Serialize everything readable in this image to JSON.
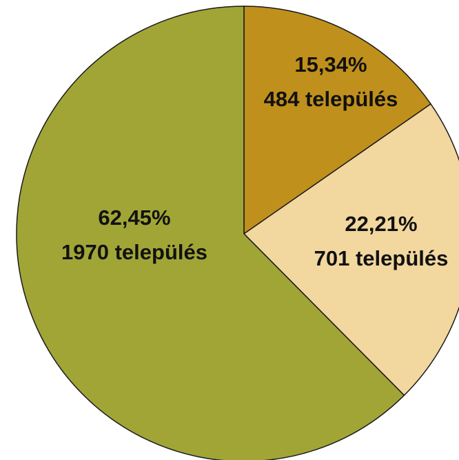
{
  "chart_data": {
    "type": "pie",
    "title": "",
    "start_angle_deg": 0,
    "direction": "clockwise",
    "legend": "none",
    "slices": [
      {
        "percent_label": "15,34%",
        "count_label": "484 település",
        "value": 484,
        "percent": 15.34,
        "color": "#c0901c"
      },
      {
        "percent_label": "22,21%",
        "count_label": "701 település",
        "value": 701,
        "percent": 22.21,
        "color": "#f2d79e"
      },
      {
        "percent_label": "62,45%",
        "count_label": "1970 település",
        "value": 1970,
        "percent": 62.45,
        "color": "#a1a536"
      }
    ],
    "outline_color": "#1a1a1a"
  }
}
